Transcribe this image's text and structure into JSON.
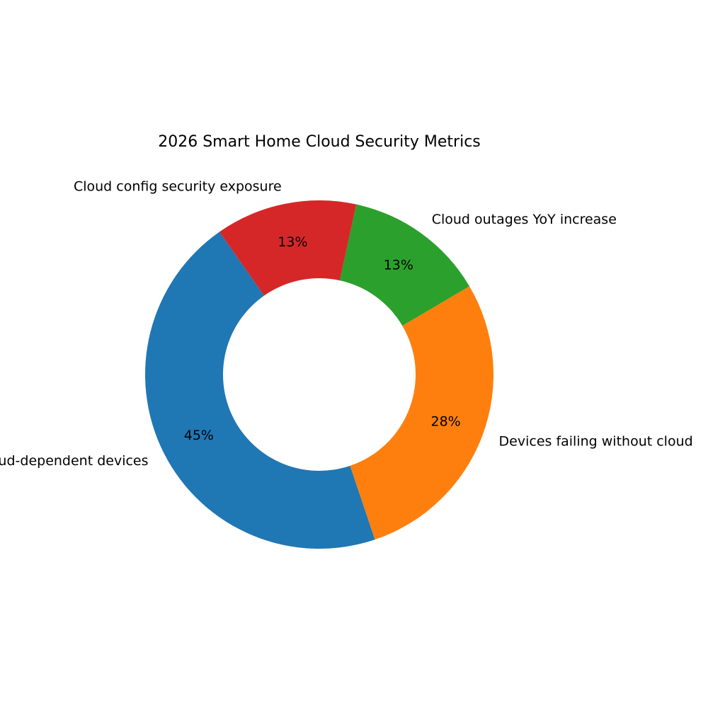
{
  "chart_data": {
    "type": "pie",
    "donut": true,
    "title": "2026 Smart Home Cloud Security Metrics",
    "start_angle_deg": 125,
    "direction": "counterclockwise",
    "slices": [
      {
        "label": "Cloud-dependent devices",
        "value": 45,
        "pct_label": "45%",
        "color": "#1f77b4"
      },
      {
        "label": "Devices failing without cloud",
        "value": 28,
        "pct_label": "28%",
        "color": "#ff7f0e"
      },
      {
        "label": "Cloud outages YoY increase",
        "value": 13,
        "pct_label": "13%",
        "color": "#2ca02c"
      },
      {
        "label": "Cloud config security exposure",
        "value": 13,
        "pct_label": "13%",
        "color": "#d62728"
      }
    ]
  }
}
